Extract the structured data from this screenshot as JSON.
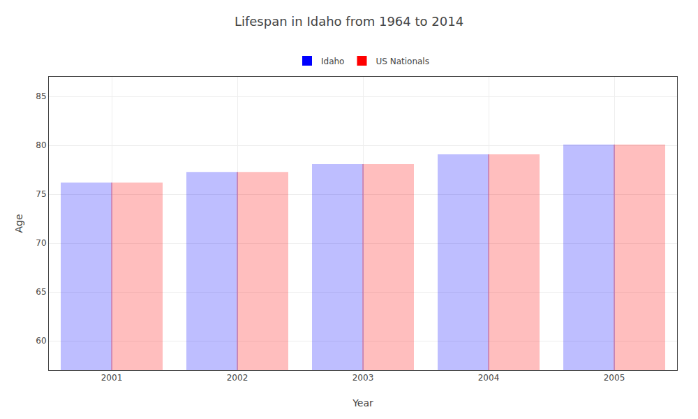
{
  "chart_data": {
    "type": "bar",
    "title": "Lifespan in Idaho from 1964 to 2014",
    "x_label": "Year",
    "y_label": "Age",
    "categories": [
      "2001",
      "2002",
      "2003",
      "2004",
      "2005"
    ],
    "series": [
      {
        "name": "Idaho",
        "color": "#0000ff",
        "values": [
          76.1,
          77.2,
          78.0,
          79.0,
          80.0
        ]
      },
      {
        "name": "US Nationals",
        "color": "#ff0000",
        "values": [
          76.1,
          77.2,
          78.0,
          79.0,
          80.0
        ]
      }
    ],
    "ylim": [
      57,
      87
    ],
    "yticks": [
      60,
      65,
      70,
      75,
      80,
      85
    ],
    "grid": true,
    "legend": "top"
  }
}
